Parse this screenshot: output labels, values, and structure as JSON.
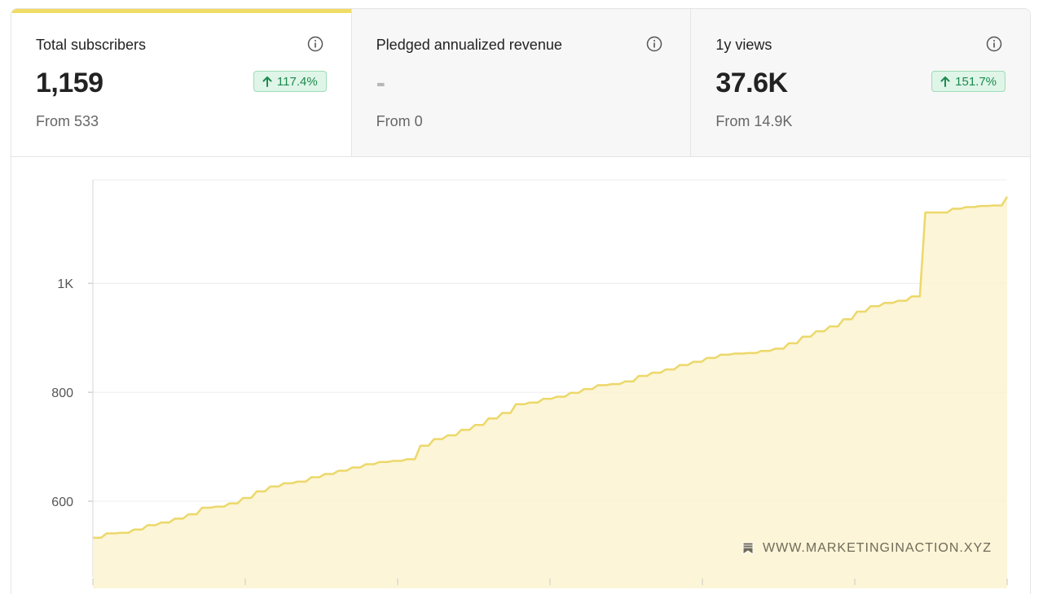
{
  "cards": [
    {
      "title": "Total subscribers",
      "value": "1,159",
      "from": "From 533",
      "change": "117.4%",
      "change_direction": "up",
      "icon": "info-icon"
    },
    {
      "title": "Pledged annualized revenue",
      "value": "-",
      "from": "From 0",
      "icon": "info-icon"
    },
    {
      "title": "1y views",
      "value": "37.6K",
      "from": "From 14.9K",
      "change": "151.7%",
      "change_direction": "up",
      "icon": "info-icon"
    }
  ],
  "colors": {
    "accent": "#f0dc64",
    "line": "#ecd86a",
    "area": "#fbf3d0",
    "badge_bg": "#dff5e8",
    "badge_text": "#1d8a4e"
  },
  "watermark": {
    "text": "WWW.MARKETINGINACTION.XYZ",
    "icon": "bookmark-icon"
  },
  "chart_data": {
    "type": "area",
    "title": "",
    "xlabel": "",
    "ylabel": "",
    "ylim": [
      470,
      1190
    ],
    "yticks": [
      600,
      800,
      1000
    ],
    "ytick_labels": [
      "600",
      "800",
      "1K"
    ],
    "grid": true,
    "x_tick_count": 7,
    "series": [
      {
        "values": [
          533,
          541,
          542,
          548,
          556,
          561,
          568,
          576,
          588,
          590,
          596,
          606,
          618,
          627,
          633,
          636,
          644,
          650,
          656,
          662,
          668,
          672,
          674,
          677,
          702,
          714,
          721,
          731,
          740,
          752,
          762,
          778,
          781,
          788,
          792,
          799,
          806,
          813,
          815,
          820,
          830,
          836,
          842,
          850,
          856,
          863,
          869,
          871,
          872,
          876,
          880,
          890,
          902,
          912,
          921,
          934,
          948,
          958,
          964,
          968,
          976,
          1130,
          1130,
          1137,
          1140,
          1142,
          1143,
          1159
        ]
      }
    ]
  }
}
